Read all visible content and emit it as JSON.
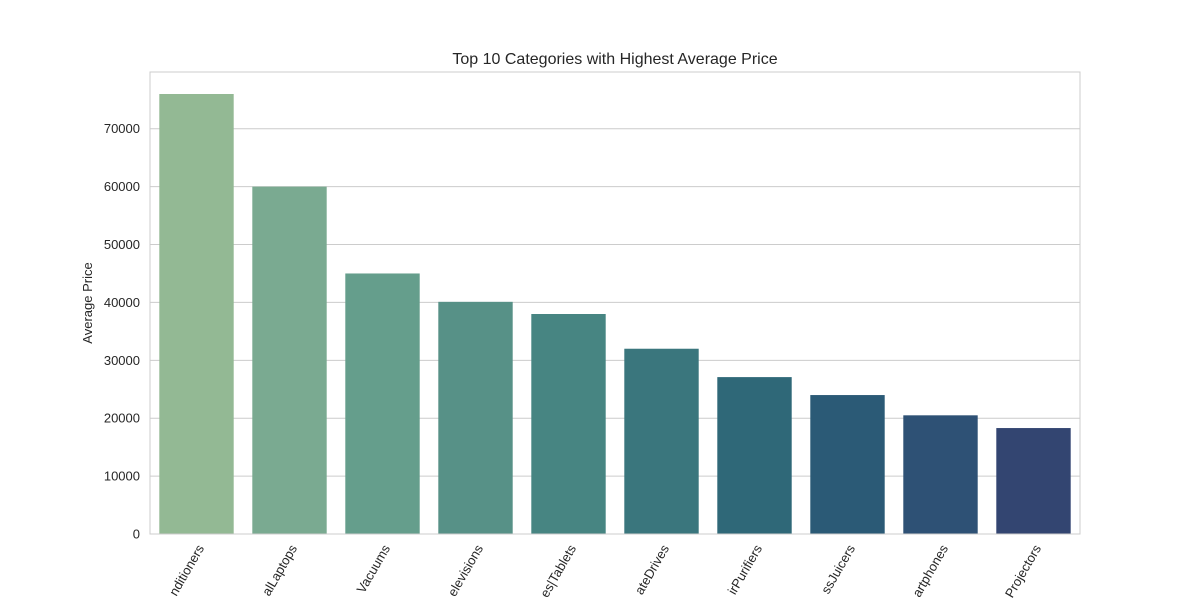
{
  "chart_data": {
    "type": "bar",
    "title": "Top 10 Categories with Highest Average Price",
    "xlabel": "",
    "ylabel": "Average Price",
    "categories": [
      "nditioners",
      "alLaptops",
      "Vacuums",
      "elevisions",
      "es|Tablets",
      "ateDrives",
      "irPurifiers",
      "ssJuicers",
      "artphones",
      "Projectors"
    ],
    "values": [
      76000,
      60000,
      45000,
      40100,
      38000,
      32000,
      27100,
      24000,
      20500,
      18300
    ],
    "colors": [
      "#93b994",
      "#7aaa91",
      "#659e8c",
      "#579187",
      "#478582",
      "#3a767d",
      "#2f6878",
      "#2b5a76",
      "#2e5175",
      "#334571"
    ],
    "yticks": [
      0,
      10000,
      20000,
      30000,
      40000,
      50000,
      60000,
      70000
    ],
    "ylim": [
      0,
      79800
    ],
    "grid": true,
    "legend": "none"
  }
}
